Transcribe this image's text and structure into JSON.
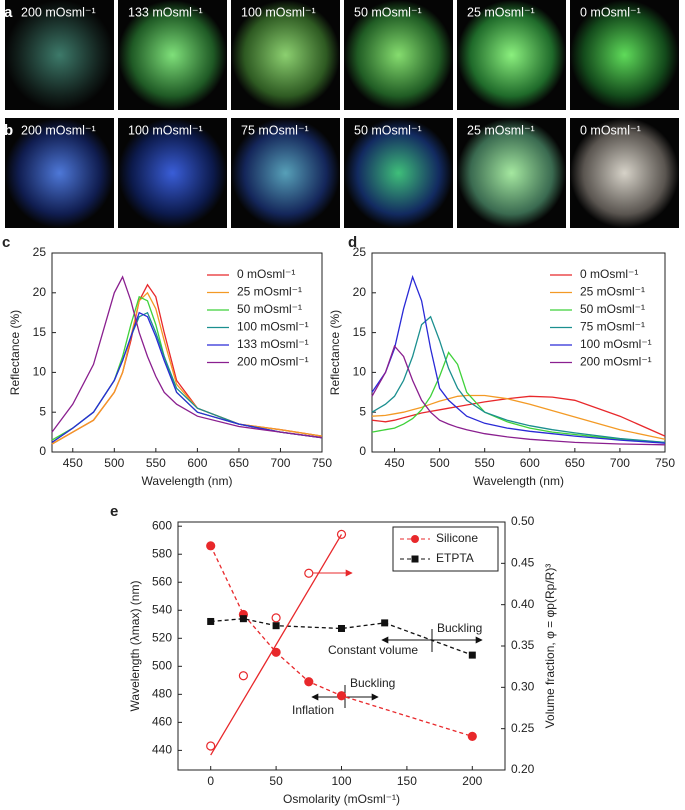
{
  "panels": {
    "a": {
      "letter": "a",
      "tiles": [
        "200 mOsml⁻¹",
        "133 mOsml⁻¹",
        "100 mOsml⁻¹",
        "50 mOsml⁻¹",
        "25 mOsml⁻¹",
        "0 mOsml⁻¹"
      ]
    },
    "b": {
      "letter": "b",
      "tiles": [
        "200 mOsml⁻¹",
        "100 mOsml⁻¹",
        "75 mOsml⁻¹",
        "50 mOsml⁻¹",
        "25 mOsml⁻¹",
        "0 mOsml⁻¹"
      ]
    }
  },
  "chart_data": [
    {
      "type": "line",
      "letter": "c",
      "x_label": "Wavelength (nm)",
      "y_label": "Reflectance (%)",
      "x": [
        425,
        450,
        475,
        500,
        510,
        520,
        530,
        540,
        550,
        560,
        575,
        600,
        650,
        700,
        750
      ],
      "xlim": [
        425,
        750
      ],
      "xticks": [
        450,
        500,
        550,
        600,
        650,
        700,
        750
      ],
      "ylim": [
        0,
        25
      ],
      "yticks": [
        0,
        5,
        10,
        15,
        20,
        25
      ],
      "legend": "upper right",
      "series": [
        {
          "name": "0 mOsml⁻¹",
          "color": "#e8282b",
          "values": [
            1,
            2.5,
            4,
            7.5,
            10,
            14,
            19,
            21,
            19.5,
            15,
            9,
            5.5,
            3.5,
            2.8,
            2
          ]
        },
        {
          "name": "25 mOsml⁻¹",
          "color": "#f39a25",
          "values": [
            1,
            2.5,
            4,
            7.5,
            10,
            14.5,
            19,
            20,
            18,
            14,
            8.5,
            5.5,
            3.5,
            2.8,
            2
          ]
        },
        {
          "name": "50 mOsml⁻¹",
          "color": "#3fd13a",
          "values": [
            1.5,
            3,
            5,
            9,
            12,
            16,
            19.5,
            19,
            16,
            12,
            7.5,
            5,
            3.5,
            2.5,
            1.8
          ]
        },
        {
          "name": "100 mOsml⁻¹",
          "color": "#1b8f8f",
          "values": [
            1.2,
            3,
            5,
            9,
            11.5,
            14.5,
            17,
            17.5,
            15,
            12,
            8,
            5.5,
            3.5,
            2.5,
            1.8
          ]
        },
        {
          "name": "133 mOsml⁻¹",
          "color": "#2a2ad6",
          "values": [
            1.2,
            3,
            5,
            9,
            11.5,
            14.5,
            17.5,
            17,
            14.5,
            11.5,
            7.5,
            5,
            3.5,
            2.5,
            1.8
          ]
        },
        {
          "name": "200 mOsml⁻¹",
          "color": "#8a1f8f",
          "values": [
            2.5,
            6,
            11,
            20,
            22,
            19,
            15,
            12,
            9.5,
            7.5,
            6,
            4.5,
            3.2,
            2.5,
            1.8
          ]
        }
      ]
    },
    {
      "type": "line",
      "letter": "d",
      "x_label": "Wavelength (nm)",
      "y_label": "Reflectance (%)",
      "x": [
        425,
        440,
        450,
        460,
        470,
        480,
        490,
        500,
        510,
        520,
        530,
        550,
        575,
        600,
        625,
        650,
        700,
        750
      ],
      "xlim": [
        425,
        750
      ],
      "xticks": [
        450,
        500,
        550,
        600,
        650,
        700,
        750
      ],
      "ylim": [
        0,
        25
      ],
      "yticks": [
        0,
        5,
        10,
        15,
        20,
        25
      ],
      "legend": "upper right",
      "series": [
        {
          "name": "0 mOsml⁻¹",
          "color": "#e8282b",
          "values": [
            4,
            3.8,
            4,
            4.3,
            4.6,
            4.9,
            5.1,
            5.3,
            5.5,
            5.7,
            5.9,
            6.3,
            6.7,
            7,
            6.9,
            6.5,
            4.5,
            2
          ]
        },
        {
          "name": "25 mOsml⁻¹",
          "color": "#f39a25",
          "values": [
            4.5,
            4.6,
            4.8,
            5,
            5.3,
            5.6,
            6,
            6.4,
            6.7,
            7,
            7.1,
            7.1,
            6.7,
            6,
            5.2,
            4.4,
            2.8,
            1.6
          ]
        },
        {
          "name": "50 mOsml⁻¹",
          "color": "#3fd13a",
          "values": [
            2.5,
            2.8,
            3,
            3.5,
            4.2,
            5.3,
            7,
            9.5,
            12.5,
            11,
            7.5,
            5,
            3.8,
            3,
            2.5,
            2.2,
            1.6,
            1.2
          ]
        },
        {
          "name": "75 mOsml⁻¹",
          "color": "#1b8f8f",
          "values": [
            5,
            6,
            7,
            9,
            12,
            16,
            17,
            14,
            10.5,
            8,
            6.5,
            5,
            4,
            3.3,
            2.8,
            2.4,
            1.7,
            1.2
          ]
        },
        {
          "name": "100 mOsml⁻¹",
          "color": "#2a2ad6",
          "values": [
            7.5,
            10,
            13,
            18,
            22,
            19,
            13,
            8,
            6.5,
            5.5,
            4.5,
            3.6,
            3,
            2.6,
            2.3,
            2,
            1.5,
            1.1
          ]
        },
        {
          "name": "200 mOsml⁻¹",
          "color": "#8a1f8f",
          "values": [
            7,
            10,
            13.3,
            12,
            9,
            6.5,
            5,
            4,
            3.5,
            3.1,
            2.8,
            2.3,
            1.9,
            1.6,
            1.4,
            1.2,
            1,
            0.9
          ]
        }
      ]
    },
    {
      "type": "line",
      "letter": "e",
      "x_label": "Osmolarity (mOsml⁻¹)",
      "y_label": "Wavelength (λmax) (nm)",
      "y2_label": "Volume fraction, φ = φp(Rp/R)³",
      "xlim": [
        -25,
        225
      ],
      "xticks": [
        0,
        50,
        100,
        150,
        200
      ],
      "ylim": [
        426,
        603
      ],
      "yticks": [
        440,
        460,
        480,
        500,
        520,
        540,
        560,
        580,
        600
      ],
      "y2lim": [
        0.2,
        0.5
      ],
      "y2ticks": [
        {
          "value": 0.2,
          "label": "0.20"
        },
        0.25,
        {
          "value": 0.3,
          "label": "0.30"
        },
        0.35,
        {
          "value": 0.4,
          "label": "0.40"
        },
        0.45,
        {
          "value": 0.5,
          "label": "0.50"
        }
      ],
      "legend": "upper right",
      "annotations": [
        "Buckling",
        "Constant volume",
        "Buckling",
        "Inflation"
      ],
      "series": [
        {
          "name": "Silicone",
          "color": "#e8282b",
          "marker": "circle",
          "dash": true,
          "x": [
            0,
            25,
            50,
            75,
            100,
            200
          ],
          "values": [
            586,
            537,
            510,
            489,
            479,
            450
          ]
        },
        {
          "name": "ETPTA",
          "color": "#111111",
          "marker": "square",
          "dash": true,
          "x": [
            0,
            25,
            50,
            100,
            133,
            200
          ],
          "values": [
            532,
            534,
            529,
            527,
            531,
            508
          ]
        },
        {
          "color": "#e8282b",
          "marker": "open-circle",
          "axis": "y2",
          "x": [
            0,
            25,
            50,
            75,
            100
          ],
          "values": [
            0.229,
            0.314,
            0.384,
            0.438,
            0.485
          ]
        },
        {
          "color": "#e8282b",
          "axis": "y2",
          "x": [
            0,
            100
          ],
          "values": [
            0.218,
            0.485
          ]
        }
      ]
    }
  ]
}
